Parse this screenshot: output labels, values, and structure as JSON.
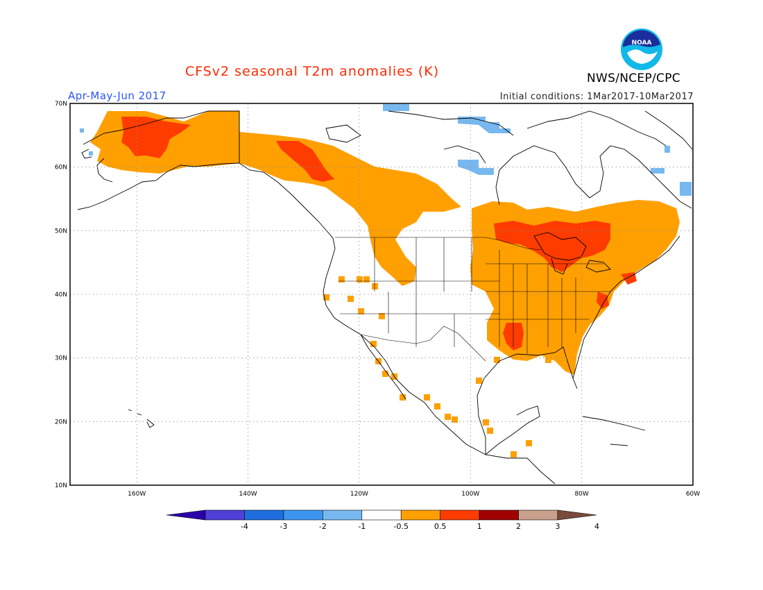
{
  "title": "CFSv2 seasonal T2m anomalies (K)",
  "period": "Apr-May-Jun 2017",
  "initial_conditions": "Initial conditions: 1Mar2017-10Mar2017",
  "agency": "NWS/NCEP/CPC",
  "logo_text": "NOAA",
  "colors": {
    "title": "#ff2a00",
    "period": "#2a52ff",
    "ocean": "#ffffff",
    "coast": "#000000",
    "grid": "#8c8c8c"
  },
  "axes": {
    "lat_labels": [
      "70N",
      "60N",
      "50N",
      "40N",
      "30N",
      "20N",
      "10N"
    ],
    "lon_labels": [
      "160W",
      "140W",
      "120W",
      "100W",
      "80W",
      "60W"
    ],
    "lat_range": [
      10,
      70
    ],
    "lon_range": [
      -172,
      -60
    ]
  },
  "colorbar": {
    "labels": [
      "-4",
      "-3",
      "-2",
      "-1",
      "-0.5",
      "0.5",
      "1",
      "2",
      "3",
      "4"
    ],
    "colors": [
      "#2a00a8",
      "#5040d8",
      "#1e6ee0",
      "#3c96f0",
      "#78b8f0",
      "#ffffff",
      "#ffa000",
      "#ff3c00",
      "#a00000",
      "#c8a08c",
      "#7a4a3a"
    ]
  },
  "anomaly_regions": [
    {
      "level": "0.5-1",
      "color": "#ffa000",
      "region": "Alaska"
    },
    {
      "level": "1-2",
      "color": "#ff3c00",
      "region": "Western Alaska"
    },
    {
      "level": "0.5-1",
      "color": "#ffa000",
      "region": "Yukon / NW Canada"
    },
    {
      "level": "1-2",
      "color": "#ff3c00",
      "region": "Northern BC"
    },
    {
      "level": "0.5-1",
      "color": "#ffa000",
      "region": "Eastern US & SE Canada"
    },
    {
      "level": "1-2",
      "color": "#ff3c00",
      "region": "Ontario / Great Lakes"
    },
    {
      "level": "-0.5--1",
      "color": "#78b8f0",
      "region": "Arctic islands"
    }
  ]
}
